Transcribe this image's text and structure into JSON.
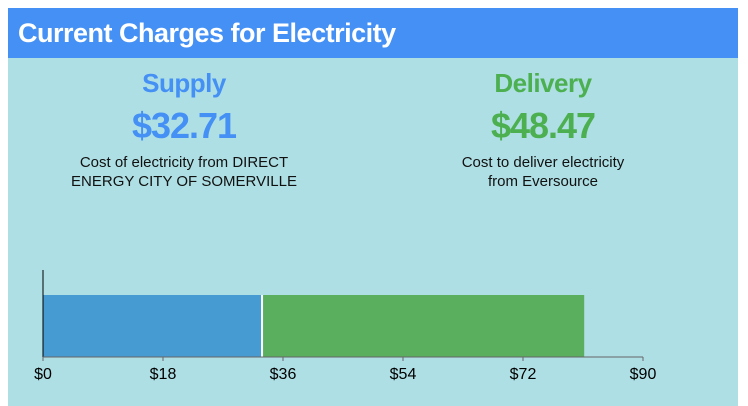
{
  "header": {
    "title": "Current Charges for Electricity"
  },
  "supply": {
    "label": "Supply",
    "amount": "$32.71",
    "description_line1": "Cost of electricity from DIRECT",
    "description_line2": "ENERGY CITY OF SOMERVILLE",
    "color": "#4490f4"
  },
  "delivery": {
    "label": "Delivery",
    "amount": "$48.47",
    "description_line1": "Cost to deliver electricity",
    "description_line2": "from Eversource",
    "color": "#4caf50"
  },
  "chart_data": {
    "type": "bar",
    "orientation": "horizontal-stacked",
    "series": [
      {
        "name": "Supply",
        "values": [
          32.71
        ],
        "color": "#469bd2"
      },
      {
        "name": "Delivery",
        "values": [
          48.47
        ],
        "color": "#5aaf5e"
      }
    ],
    "xlim": [
      0,
      90
    ],
    "ticks": [
      0,
      18,
      36,
      54,
      72,
      90
    ],
    "tick_labels": [
      "$0",
      "$18",
      "$36",
      "$54",
      "$72",
      "$90"
    ],
    "grid": false
  }
}
